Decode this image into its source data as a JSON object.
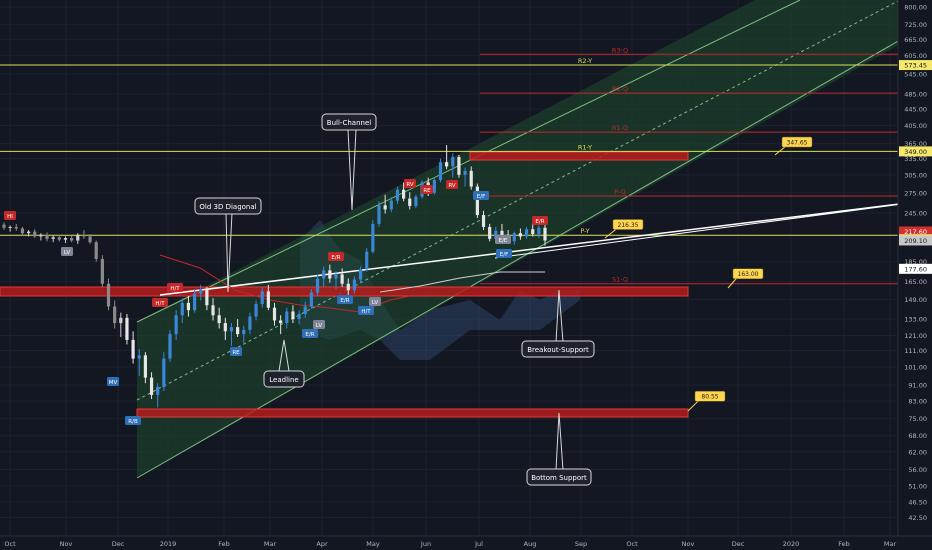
{
  "chart_data": {
    "type": "candlestick",
    "title": "",
    "x_axis": {
      "labels": [
        "Oct",
        "Nov",
        "Dec",
        "2019",
        "Feb",
        "Mar",
        "Apr",
        "May",
        "Jun",
        "Jul",
        "Aug",
        "Sep",
        "Oct",
        "Nov",
        "Dec",
        "2020",
        "Feb",
        "Mar"
      ]
    },
    "y_axis": {
      "scale": "log",
      "range": [
        40.0,
        810.0
      ],
      "ticks": [
        800.0,
        725.0,
        665.0,
        605.0,
        545.0,
        485.0,
        445.0,
        405.0,
        365.0,
        335.0,
        305.0,
        275.0,
        245.0,
        215.0,
        185.0,
        165.0,
        149.0,
        133.0,
        121.0,
        111.0,
        101.0,
        91.0,
        83.0,
        75.0,
        68.0,
        62.0,
        56.0,
        51.0,
        46.5,
        42.5
      ]
    },
    "price_labels": [
      {
        "value": 573.45,
        "text": "573.45",
        "color": "#f5e86a"
      },
      {
        "value": 349.0,
        "text": "349.00",
        "color": "#f5e86a"
      },
      {
        "value": 217.6,
        "text": "217.60",
        "color": "#d0312d"
      },
      {
        "value": 215.45,
        "text": "215.45",
        "color": "#f5e86a"
      },
      {
        "value": 209.1,
        "text": "209.10",
        "color": "#c7c7c7"
      },
      {
        "value": 177.6,
        "text": "177.60",
        "color": "#ffffff"
      }
    ],
    "levels": [
      {
        "label": "R2-Y",
        "value": 573.45,
        "color": "#d8e05a"
      },
      {
        "label": "R1-Y",
        "value": 349.0,
        "color": "#d8e05a"
      },
      {
        "label": "P-Y",
        "value": 215.45,
        "color": "#d8e05a"
      },
      {
        "label": "R3-Q",
        "value": 610.0,
        "color": "#c02a2a"
      },
      {
        "label": "R2-Q",
        "value": 488.0,
        "color": "#c02a2a"
      },
      {
        "label": "R1-Q",
        "value": 390.0,
        "color": "#c02a2a"
      },
      {
        "label": "P-Q",
        "value": 270.0,
        "color": "#c02a2a"
      },
      {
        "label": "S1-Q",
        "value": 163.0,
        "color": "#c02a2a"
      }
    ],
    "callouts": [
      {
        "text": "347.65",
        "value": 347.65
      },
      {
        "text": "216.35",
        "value": 216.35
      },
      {
        "text": "163.00",
        "value": 163.0
      },
      {
        "text": "80.55",
        "value": 80.55
      }
    ],
    "annotations": [
      "Bull-Channel",
      "Old 3D Diagonal",
      "Leadline",
      "Breakout-Support",
      "Bottom Support"
    ],
    "candles": [
      {
        "o": 229,
        "h": 232,
        "l": 222,
        "c": 225
      },
      {
        "o": 225,
        "h": 228,
        "l": 220,
        "c": 226
      },
      {
        "o": 226,
        "h": 230,
        "l": 221,
        "c": 224
      },
      {
        "o": 224,
        "h": 226,
        "l": 215,
        "c": 218
      },
      {
        "o": 218,
        "h": 222,
        "l": 214,
        "c": 220
      },
      {
        "o": 220,
        "h": 223,
        "l": 212,
        "c": 214
      },
      {
        "o": 214,
        "h": 218,
        "l": 209,
        "c": 216
      },
      {
        "o": 216,
        "h": 219,
        "l": 208,
        "c": 211
      },
      {
        "o": 211,
        "h": 215,
        "l": 207,
        "c": 213
      },
      {
        "o": 213,
        "h": 216,
        "l": 208,
        "c": 210
      },
      {
        "o": 210,
        "h": 214,
        "l": 206,
        "c": 212
      },
      {
        "o": 212,
        "h": 215,
        "l": 207,
        "c": 209
      },
      {
        "o": 209,
        "h": 218,
        "l": 205,
        "c": 216
      },
      {
        "o": 216,
        "h": 222,
        "l": 211,
        "c": 214
      },
      {
        "o": 214,
        "h": 217,
        "l": 205,
        "c": 207
      },
      {
        "o": 207,
        "h": 209,
        "l": 185,
        "c": 188
      },
      {
        "o": 188,
        "h": 192,
        "l": 160,
        "c": 163
      },
      {
        "o": 163,
        "h": 168,
        "l": 140,
        "c": 143
      },
      {
        "o": 143,
        "h": 148,
        "l": 126,
        "c": 130
      },
      {
        "o": 130,
        "h": 138,
        "l": 120,
        "c": 134
      },
      {
        "o": 134,
        "h": 137,
        "l": 115,
        "c": 118
      },
      {
        "o": 118,
        "h": 124,
        "l": 103,
        "c": 106
      },
      {
        "o": 106,
        "h": 112,
        "l": 96,
        "c": 108
      },
      {
        "o": 108,
        "h": 110,
        "l": 92,
        "c": 95
      },
      {
        "o": 95,
        "h": 98,
        "l": 84,
        "c": 86
      },
      {
        "o": 86,
        "h": 92,
        "l": 80,
        "c": 90
      },
      {
        "o": 90,
        "h": 110,
        "l": 88,
        "c": 106
      },
      {
        "o": 106,
        "h": 125,
        "l": 104,
        "c": 122
      },
      {
        "o": 122,
        "h": 140,
        "l": 118,
        "c": 136
      },
      {
        "o": 136,
        "h": 150,
        "l": 130,
        "c": 146
      },
      {
        "o": 146,
        "h": 152,
        "l": 135,
        "c": 140
      },
      {
        "o": 140,
        "h": 158,
        "l": 138,
        "c": 154
      },
      {
        "o": 154,
        "h": 162,
        "l": 148,
        "c": 158
      },
      {
        "o": 158,
        "h": 160,
        "l": 140,
        "c": 144
      },
      {
        "o": 144,
        "h": 150,
        "l": 132,
        "c": 136
      },
      {
        "o": 136,
        "h": 142,
        "l": 126,
        "c": 130
      },
      {
        "o": 130,
        "h": 134,
        "l": 118,
        "c": 124
      },
      {
        "o": 124,
        "h": 130,
        "l": 114,
        "c": 127
      },
      {
        "o": 127,
        "h": 133,
        "l": 120,
        "c": 122
      },
      {
        "o": 122,
        "h": 128,
        "l": 116,
        "c": 125
      },
      {
        "o": 125,
        "h": 138,
        "l": 122,
        "c": 135
      },
      {
        "o": 135,
        "h": 148,
        "l": 132,
        "c": 145
      },
      {
        "o": 145,
        "h": 160,
        "l": 142,
        "c": 156
      },
      {
        "o": 156,
        "h": 162,
        "l": 140,
        "c": 142
      },
      {
        "o": 142,
        "h": 146,
        "l": 128,
        "c": 132
      },
      {
        "o": 132,
        "h": 136,
        "l": 122,
        "c": 130
      },
      {
        "o": 130,
        "h": 142,
        "l": 126,
        "c": 139
      },
      {
        "o": 139,
        "h": 144,
        "l": 130,
        "c": 133
      },
      {
        "o": 133,
        "h": 140,
        "l": 129,
        "c": 137
      },
      {
        "o": 137,
        "h": 147,
        "l": 134,
        "c": 143
      },
      {
        "o": 143,
        "h": 158,
        "l": 141,
        "c": 155
      },
      {
        "o": 155,
        "h": 172,
        "l": 152,
        "c": 168
      },
      {
        "o": 168,
        "h": 180,
        "l": 160,
        "c": 176
      },
      {
        "o": 176,
        "h": 182,
        "l": 164,
        "c": 168
      },
      {
        "o": 168,
        "h": 175,
        "l": 158,
        "c": 172
      },
      {
        "o": 172,
        "h": 178,
        "l": 160,
        "c": 163
      },
      {
        "o": 163,
        "h": 168,
        "l": 152,
        "c": 157
      },
      {
        "o": 157,
        "h": 170,
        "l": 154,
        "c": 167
      },
      {
        "o": 167,
        "h": 180,
        "l": 164,
        "c": 177
      },
      {
        "o": 177,
        "h": 200,
        "l": 175,
        "c": 196
      },
      {
        "o": 196,
        "h": 235,
        "l": 194,
        "c": 230
      },
      {
        "o": 230,
        "h": 262,
        "l": 226,
        "c": 256
      },
      {
        "o": 256,
        "h": 272,
        "l": 244,
        "c": 250
      },
      {
        "o": 250,
        "h": 268,
        "l": 246,
        "c": 263
      },
      {
        "o": 263,
        "h": 285,
        "l": 258,
        "c": 280
      },
      {
        "o": 280,
        "h": 292,
        "l": 262,
        "c": 266
      },
      {
        "o": 266,
        "h": 276,
        "l": 250,
        "c": 255
      },
      {
        "o": 255,
        "h": 272,
        "l": 252,
        "c": 269
      },
      {
        "o": 269,
        "h": 296,
        "l": 266,
        "c": 292
      },
      {
        "o": 292,
        "h": 300,
        "l": 270,
        "c": 275
      },
      {
        "o": 275,
        "h": 300,
        "l": 272,
        "c": 296
      },
      {
        "o": 296,
        "h": 335,
        "l": 292,
        "c": 328
      },
      {
        "o": 328,
        "h": 362,
        "l": 315,
        "c": 320
      },
      {
        "o": 320,
        "h": 345,
        "l": 300,
        "c": 338
      },
      {
        "o": 338,
        "h": 342,
        "l": 300,
        "c": 305
      },
      {
        "o": 305,
        "h": 318,
        "l": 285,
        "c": 312
      },
      {
        "o": 312,
        "h": 320,
        "l": 280,
        "c": 285
      },
      {
        "o": 285,
        "h": 290,
        "l": 238,
        "c": 242
      },
      {
        "o": 242,
        "h": 248,
        "l": 222,
        "c": 226
      },
      {
        "o": 226,
        "h": 230,
        "l": 208,
        "c": 211
      },
      {
        "o": 211,
        "h": 226,
        "l": 205,
        "c": 221
      },
      {
        "o": 221,
        "h": 230,
        "l": 212,
        "c": 216
      },
      {
        "o": 216,
        "h": 222,
        "l": 206,
        "c": 208
      },
      {
        "o": 208,
        "h": 220,
        "l": 204,
        "c": 218
      },
      {
        "o": 218,
        "h": 224,
        "l": 210,
        "c": 214
      },
      {
        "o": 214,
        "h": 226,
        "l": 211,
        "c": 223
      },
      {
        "o": 223,
        "h": 230,
        "l": 214,
        "c": 217
      },
      {
        "o": 217,
        "h": 228,
        "l": 212,
        "c": 225
      },
      {
        "o": 225,
        "h": 232,
        "l": 203,
        "c": 209
      }
    ]
  },
  "badges": {
    "hi": "HI",
    "lv": "LV",
    "ht": "H/T",
    "re": "RE",
    "rv": "RV",
    "er": "E/R",
    "ef": "E/F",
    "ee": "E/E",
    "rb": "R/B",
    "mv": "MV",
    "rr": "R/R"
  }
}
